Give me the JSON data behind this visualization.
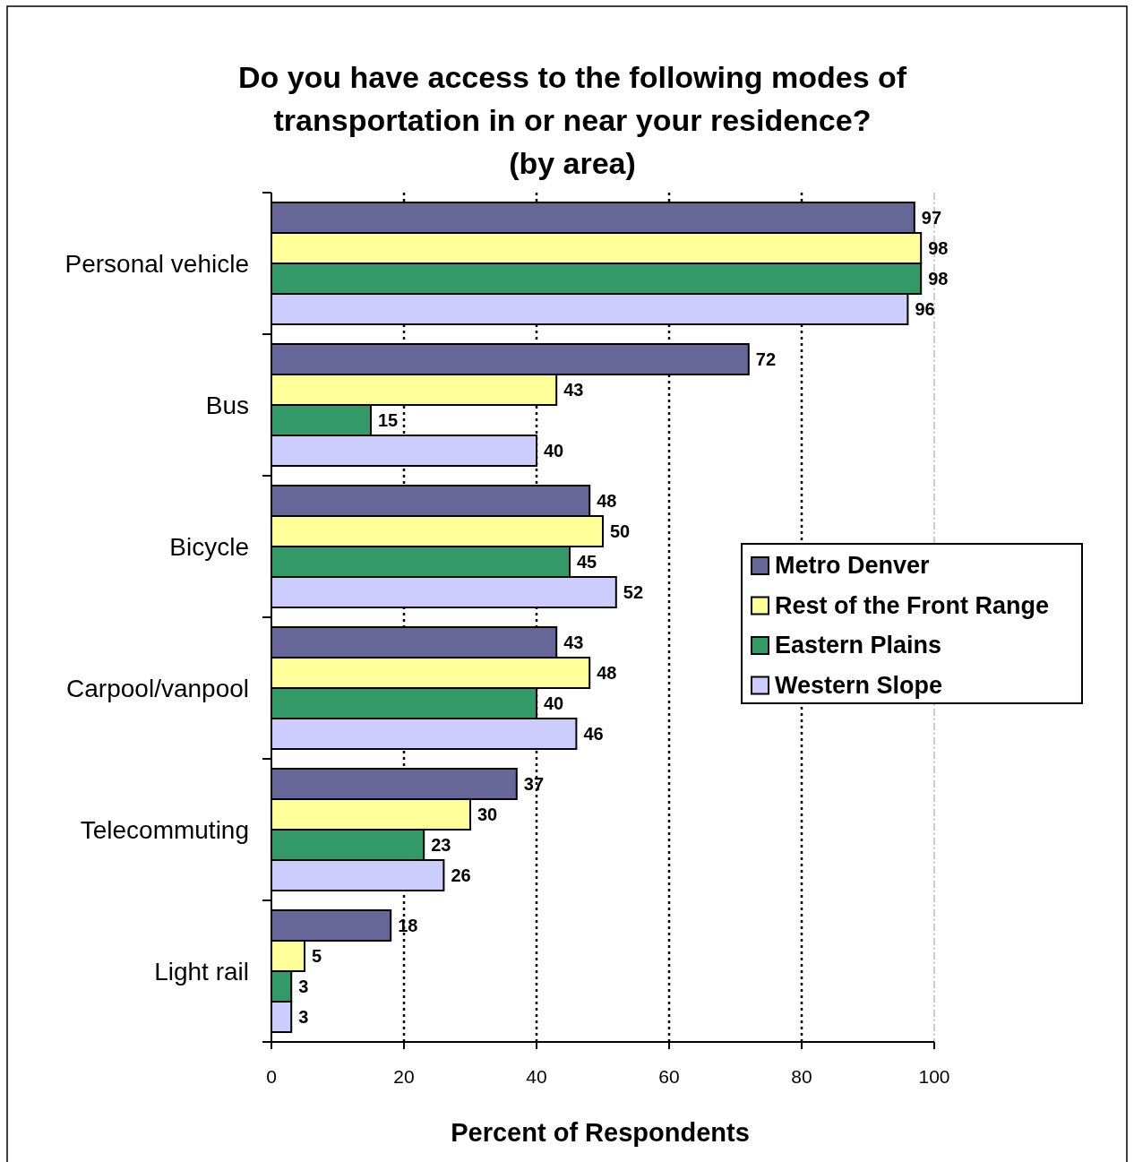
{
  "chart_data": {
    "type": "bar",
    "orientation": "horizontal",
    "title": "Do you have access to the following modes of transportation in or near your residence? (by area)",
    "xlabel": "Percent of Respondents",
    "categories": [
      "Personal vehicle",
      "Bus",
      "Bicycle",
      "Carpool/vanpool",
      "Telecommuting",
      "Light rail"
    ],
    "series": [
      {
        "name": "Metro Denver",
        "color": "#666699",
        "values": [
          97,
          72,
          48,
          43,
          37,
          18
        ]
      },
      {
        "name": "Rest of the Front Range",
        "color": "#ffff99",
        "values": [
          98,
          43,
          50,
          48,
          30,
          5
        ]
      },
      {
        "name": "Eastern Plains",
        "color": "#339966",
        "values": [
          98,
          15,
          45,
          40,
          23,
          3
        ]
      },
      {
        "name": "Western Slope",
        "color": "#ccccff",
        "values": [
          96,
          40,
          52,
          46,
          26,
          3
        ]
      }
    ],
    "xlim": [
      0,
      100
    ],
    "xticks": [
      0,
      20,
      40,
      60,
      80,
      100
    ],
    "grid": "x",
    "legend": "right",
    "data_labels": true
  }
}
